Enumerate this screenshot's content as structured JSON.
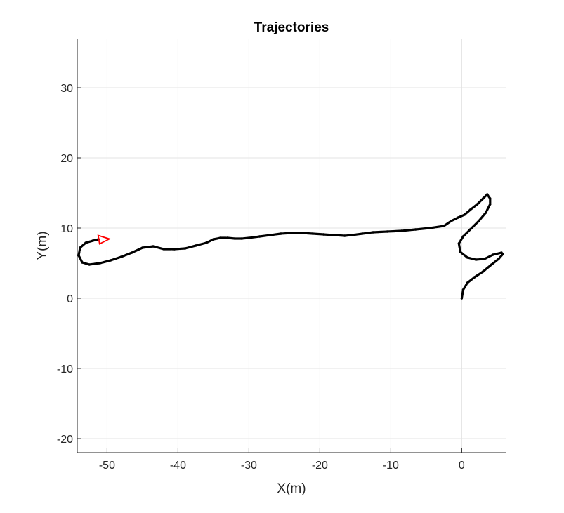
{
  "chart_data": {
    "type": "line",
    "title": "Trajectories",
    "xlabel": "X(m)",
    "ylabel": "Y(m)",
    "xlim": [
      -54.2,
      6.2
    ],
    "ylim": [
      -22,
      37
    ],
    "xticks": [
      -50,
      -40,
      -30,
      -20,
      -10,
      0
    ],
    "yticks": [
      -20,
      -10,
      0,
      10,
      20,
      30
    ],
    "xtick_labels": [
      "-50",
      "-40",
      "-30",
      "-20",
      "-10",
      "0"
    ],
    "ytick_labels": [
      "-20",
      "-10",
      "0",
      "10",
      "20",
      "30"
    ],
    "grid": true,
    "series": [
      {
        "color": "#000000",
        "style": "dotted-thick",
        "x": [
          0,
          0.2,
          0.8,
          1.8,
          3.0,
          4.2,
          5.2,
          5.8,
          5.6,
          4.4,
          3.2,
          2.0,
          0.8,
          -0.2,
          -0.4,
          0.2,
          1.2,
          2.4,
          3.4,
          4.0,
          4.0,
          3.6,
          3.0,
          2.2,
          1.2,
          0.4,
          -0.5,
          -1.5,
          -2.5,
          -4.5,
          -6.5,
          -8.5,
          -10.5,
          -12.5,
          -14.0,
          -15.5,
          -16.5,
          -18.0,
          -19.5,
          -21.0,
          -22.5,
          -24.0,
          -25.5,
          -27.0,
          -28.5,
          -30.0,
          -31.0,
          -32.0,
          -33.0,
          -34.0,
          -35.0,
          -36.0,
          -37.5,
          -39.0,
          -40.5,
          -42.0,
          -43.5,
          -45.0,
          -46.5,
          -48.0,
          -49.5,
          -51.0,
          -52.5,
          -53.5,
          -54.0,
          -53.8,
          -53.0,
          -52.0,
          -51.2
        ],
        "y": [
          0,
          1.2,
          2.2,
          3.0,
          3.8,
          4.8,
          5.6,
          6.3,
          6.5,
          6.2,
          5.6,
          5.5,
          5.8,
          6.6,
          7.8,
          8.8,
          9.8,
          11.0,
          12.2,
          13.4,
          14.2,
          14.8,
          14.2,
          13.4,
          12.6,
          11.9,
          11.5,
          11.0,
          10.3,
          10.0,
          9.8,
          9.6,
          9.5,
          9.4,
          9.2,
          9.0,
          8.9,
          9.0,
          9.1,
          9.2,
          9.3,
          9.3,
          9.2,
          9.0,
          8.8,
          8.6,
          8.5,
          8.5,
          8.6,
          8.6,
          8.4,
          7.9,
          7.5,
          7.1,
          7.0,
          7.0,
          7.4,
          7.2,
          6.5,
          5.9,
          5.4,
          5.0,
          4.8,
          5.1,
          6.1,
          7.2,
          7.9,
          8.2,
          8.4
        ]
      },
      {
        "color": "#ff0000",
        "style": "arrow",
        "x": [
          -51.2
        ],
        "y": [
          8.4
        ]
      }
    ]
  }
}
